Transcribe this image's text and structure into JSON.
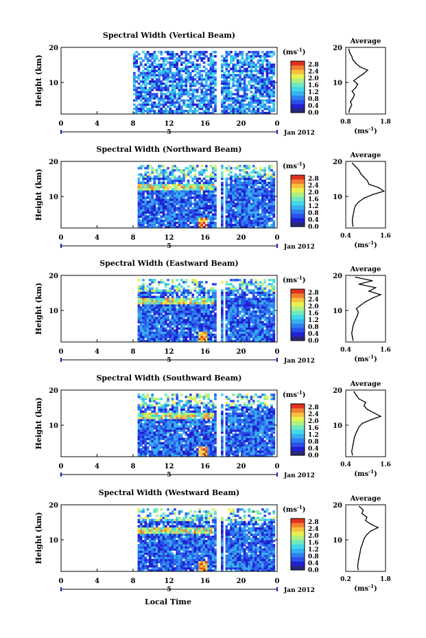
{
  "figure": {
    "xlabel": "Local Time",
    "ylabel": "Height (km)",
    "date_label": "Jan 2012",
    "day_label": "5",
    "unit_label": "(ms",
    "unit_exp": "-1",
    "unit_close": ")",
    "avg_title": "Average",
    "colors": {
      "palette": [
        "#282878",
        "#2020d0",
        "#2a50e8",
        "#3080f0",
        "#38b0f0",
        "#40d8e8",
        "#70e8c0",
        "#b0f080",
        "#e8f050",
        "#f8c040",
        "#f08030",
        "#e03020"
      ]
    }
  },
  "chart_data": [
    {
      "type": "heatmap",
      "title": "Spectral Width (Vertical Beam)",
      "xlabel": "Local Time",
      "ylabel": "Height (km)",
      "xlim": [
        0,
        24
      ],
      "ylim": [
        1,
        20
      ],
      "x_ticks": [
        "0",
        "4",
        "8",
        "12",
        "16",
        "20",
        "0"
      ],
      "y_ticks": [
        "20",
        "10"
      ],
      "colorbar": {
        "label": "(ms-1)",
        "ticks": [
          "2.8",
          "2.4",
          "2.0",
          "1.6",
          "1.2",
          "0.8",
          "0.4",
          "0.0"
        ],
        "range": [
          0.0,
          3.0
        ]
      },
      "data_time_range": [
        8.0,
        23.6
      ],
      "average_profile": {
        "xlim": [
          0.8,
          1.8
        ],
        "x_ticks": [
          "0.8",
          "1.8"
        ],
        "ylim": [
          1,
          20
        ],
        "y_ticks": [
          "20",
          "10"
        ],
        "height": [
          1.5,
          2.5,
          3.5,
          4.5,
          5.5,
          6.5,
          7.5,
          8.5,
          9.5,
          10.5,
          11.5,
          12.5,
          13.5,
          14.5,
          15.5,
          16.5,
          17.5,
          18.5,
          19.5
        ],
        "value": [
          0.88,
          0.9,
          0.95,
          0.92,
          0.98,
          1.02,
          0.96,
          1.05,
          1.1,
          1.0,
          1.12,
          1.25,
          1.35,
          1.15,
          1.05,
          0.98,
          0.95,
          0.9,
          0.88
        ]
      }
    },
    {
      "type": "heatmap",
      "title": "Spectral Width (Northward Beam)",
      "xlabel": "Local Time",
      "ylabel": "Height (km)",
      "xlim": [
        0,
        24
      ],
      "ylim": [
        1,
        20
      ],
      "x_ticks": [
        "0",
        "4",
        "8",
        "12",
        "16",
        "20",
        "0"
      ],
      "y_ticks": [
        "20",
        "10"
      ],
      "colorbar": {
        "label": "(ms-1)",
        "ticks": [
          "2.8",
          "2.4",
          "2.0",
          "1.6",
          "1.2",
          "0.8",
          "0.4",
          "0.0"
        ],
        "range": [
          0.0,
          3.0
        ]
      },
      "data_time_range": [
        8.5,
        23.6
      ],
      "average_profile": {
        "xlim": [
          0.4,
          1.6
        ],
        "x_ticks": [
          "0.4",
          "1.6"
        ],
        "ylim": [
          1,
          20
        ],
        "y_ticks": [
          "20",
          "10"
        ],
        "height": [
          1.5,
          2.5,
          3.5,
          4.5,
          5.5,
          6.5,
          7.5,
          8.5,
          9.5,
          10.5,
          11.5,
          12.5,
          13.5,
          14.5,
          15.5,
          16.5,
          17.5,
          18.5,
          19.5
        ],
        "value": [
          0.62,
          0.6,
          0.6,
          0.62,
          0.64,
          0.66,
          0.7,
          0.8,
          0.95,
          1.2,
          1.55,
          1.4,
          1.1,
          1.05,
          0.95,
          0.85,
          0.8,
          0.7,
          0.6
        ]
      }
    },
    {
      "type": "heatmap",
      "title": "Spectral Width (Eastward Beam)",
      "xlabel": "Local Time",
      "ylabel": "Height (km)",
      "xlim": [
        0,
        24
      ],
      "ylim": [
        1,
        20
      ],
      "x_ticks": [
        "0",
        "4",
        "8",
        "12",
        "16",
        "20",
        "0"
      ],
      "y_ticks": [
        "20",
        "10"
      ],
      "colorbar": {
        "label": "(ms-1)",
        "ticks": [
          "2.8",
          "2.4",
          "2.0",
          "1.6",
          "1.2",
          "0.8",
          "0.4",
          "0.0"
        ],
        "range": [
          0.0,
          3.0
        ]
      },
      "data_time_range": [
        8.5,
        23.6
      ],
      "average_profile": {
        "xlim": [
          0.4,
          1.6
        ],
        "x_ticks": [
          "0.4",
          "1.6"
        ],
        "ylim": [
          1,
          20
        ],
        "y_ticks": [
          "20",
          "10"
        ],
        "height": [
          1.5,
          2.5,
          3.5,
          4.5,
          5.5,
          6.5,
          7.5,
          8.5,
          9.5,
          10.5,
          11.5,
          12.5,
          13.5,
          14.5,
          15.5,
          16.5,
          17.5,
          18.5,
          19.5
        ],
        "value": [
          0.62,
          0.6,
          0.58,
          0.6,
          0.62,
          0.65,
          0.7,
          0.75,
          0.78,
          0.72,
          0.85,
          1.0,
          1.2,
          1.45,
          1.1,
          1.3,
          0.8,
          1.2,
          0.7
        ]
      }
    },
    {
      "type": "heatmap",
      "title": "Spectral Width (Southward Beam)",
      "xlabel": "Local Time",
      "ylabel": "Height (km)",
      "xlim": [
        0,
        24
      ],
      "ylim": [
        1,
        20
      ],
      "x_ticks": [
        "0",
        "4",
        "8",
        "12",
        "16",
        "20",
        "0"
      ],
      "y_ticks": [
        "20",
        "10"
      ],
      "colorbar": {
        "label": "(ms-1)",
        "ticks": [
          "2.8",
          "2.4",
          "2.0",
          "1.6",
          "1.2",
          "0.8",
          "0.4",
          "0.0"
        ],
        "range": [
          0.0,
          3.0
        ]
      },
      "data_time_range": [
        8.5,
        23.6
      ],
      "average_profile": {
        "xlim": [
          0.4,
          1.6
        ],
        "x_ticks": [
          "0.4",
          "1.6"
        ],
        "ylim": [
          1,
          20
        ],
        "y_ticks": [
          "20",
          "10"
        ],
        "height": [
          1.5,
          2.5,
          3.5,
          4.5,
          5.5,
          6.5,
          7.5,
          8.5,
          9.5,
          10.5,
          11.5,
          12.5,
          13.5,
          14.5,
          15.5,
          16.5,
          17.5,
          18.5,
          19.5
        ],
        "value": [
          0.6,
          0.58,
          0.6,
          0.62,
          0.64,
          0.66,
          0.7,
          0.75,
          0.8,
          0.9,
          1.15,
          1.45,
          1.25,
          1.05,
          0.95,
          1.0,
          0.8,
          0.72,
          0.65
        ]
      }
    },
    {
      "type": "heatmap",
      "title": "Spectral Width (Westward Beam)",
      "xlabel": "Local Time",
      "ylabel": "Height (km)",
      "xlim": [
        0,
        24
      ],
      "ylim": [
        1,
        20
      ],
      "x_ticks": [
        "0",
        "4",
        "8",
        "12",
        "16",
        "20",
        "0"
      ],
      "y_ticks": [
        "20",
        "10"
      ],
      "colorbar": {
        "label": "(ms-1)",
        "ticks": [
          "2.8",
          "2.4",
          "2.0",
          "1.6",
          "1.2",
          "0.8",
          "0.4",
          "0.0"
        ],
        "range": [
          0.0,
          3.0
        ]
      },
      "data_time_range": [
        8.5,
        23.6
      ],
      "average_profile": {
        "xlim": [
          0.2,
          1.8
        ],
        "x_ticks": [
          "0.2",
          "1.8"
        ],
        "ylim": [
          1,
          20
        ],
        "y_ticks": [
          "20",
          "10"
        ],
        "height": [
          1.5,
          2.5,
          3.5,
          4.5,
          5.5,
          6.5,
          7.5,
          8.5,
          9.5,
          10.5,
          11.5,
          12.5,
          13.5,
          14.5,
          15.5,
          16.5,
          17.5,
          18.5,
          19.5
        ],
        "value": [
          0.7,
          0.68,
          0.7,
          0.72,
          0.75,
          0.78,
          0.8,
          0.85,
          0.9,
          0.95,
          1.05,
          1.2,
          1.5,
          1.2,
          1.0,
          1.05,
          0.85,
          0.9,
          0.75
        ]
      }
    }
  ]
}
